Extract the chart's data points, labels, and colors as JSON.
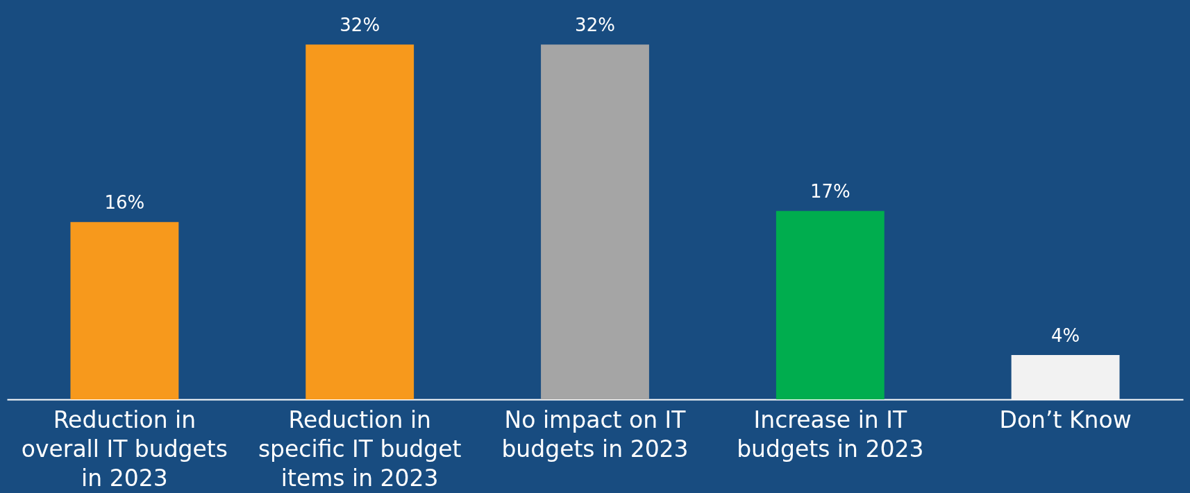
{
  "chart_data": {
    "type": "bar",
    "categories": [
      "Reduction in overall IT budgets in 2023",
      "Reduction in specific IT budget items in 2023",
      "No impact on IT budgets in 2023",
      "Increase in IT budgets in 2023",
      "Don’t Know"
    ],
    "values": [
      16,
      32,
      32,
      17,
      4
    ],
    "colors": [
      "#f7991c",
      "#f7991c",
      "#a5a5a5",
      "#00ad4e",
      "#f2f2f2"
    ],
    "value_labels": [
      "16%",
      "32%",
      "32%",
      "17%",
      "4%"
    ],
    "grid": false
  }
}
